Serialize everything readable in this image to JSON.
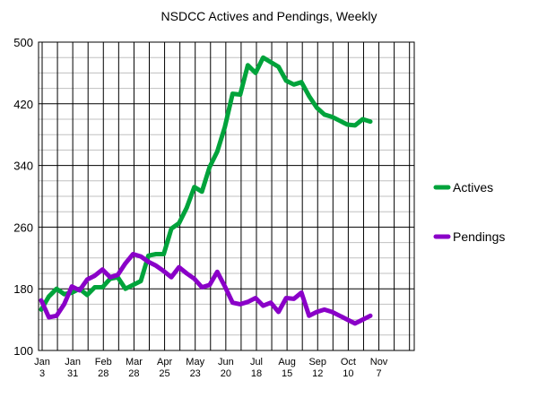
{
  "chart_data": {
    "type": "line",
    "title": "NSDCC Actives and Pendings, Weekly",
    "xlabel": "",
    "ylabel": "",
    "ylim": [
      100,
      500
    ],
    "yticks": [
      100,
      180,
      260,
      340,
      420,
      500
    ],
    "grid": true,
    "legend_position": "right",
    "x_tick_labels": [
      {
        "month": "Jan",
        "day": "3"
      },
      {
        "month": "Jan",
        "day": "31"
      },
      {
        "month": "Feb",
        "day": "28"
      },
      {
        "month": "Mar",
        "day": "28"
      },
      {
        "month": "Apr",
        "day": "25"
      },
      {
        "month": "May",
        "day": "23"
      },
      {
        "month": "Jun",
        "day": "20"
      },
      {
        "month": "Jul",
        "day": "18"
      },
      {
        "month": "Aug",
        "day": "15"
      },
      {
        "month": "Sep",
        "day": "12"
      },
      {
        "month": "Oct",
        "day": "10"
      },
      {
        "month": "Nov",
        "day": "7"
      }
    ],
    "series": [
      {
        "name": "Actives",
        "color": "#00a33b",
        "values": [
          153,
          170,
          180,
          173,
          175,
          180,
          172,
          182,
          182,
          193,
          195,
          180,
          185,
          190,
          223,
          225,
          225,
          258,
          265,
          285,
          312,
          306,
          338,
          358,
          390,
          433,
          432,
          470,
          460,
          480,
          474,
          468,
          450,
          445,
          448,
          430,
          415,
          406,
          403,
          398,
          393,
          392,
          400,
          397
        ]
      },
      {
        "name": "Pendings",
        "color": "#8a00c8",
        "values": [
          165,
          143,
          145,
          160,
          183,
          178,
          192,
          197,
          205,
          195,
          198,
          213,
          225,
          222,
          215,
          210,
          203,
          195,
          208,
          200,
          193,
          182,
          185,
          202,
          183,
          162,
          160,
          163,
          168,
          158,
          162,
          150,
          168,
          167,
          175,
          145,
          150,
          153,
          150,
          145,
          140,
          135,
          140,
          145
        ]
      }
    ]
  }
}
